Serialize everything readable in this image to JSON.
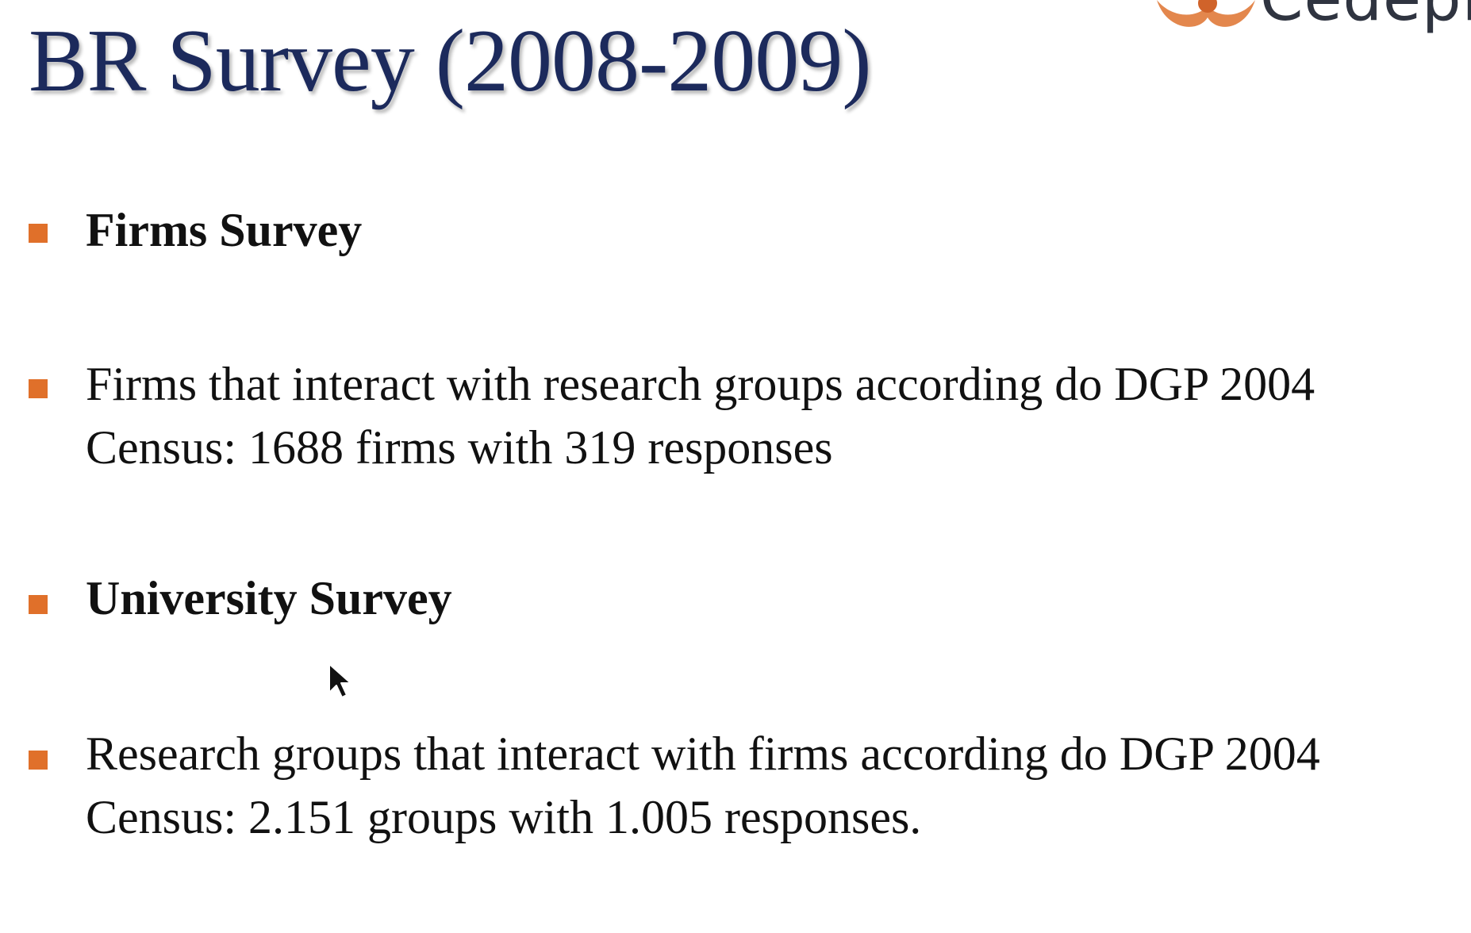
{
  "slide": {
    "title": "BR Survey (2008-2009)",
    "logo_text": "Cedepla",
    "accent_color": "#e0702a",
    "title_color": "#1c2a5c",
    "bullets": [
      {
        "text": "Firms Survey",
        "bold": true
      },
      {
        "text": "Firms that interact with research groups according do DGP 2004 Census: 1688 firms with 319 responses",
        "bold": false
      },
      {
        "text": "University Survey",
        "bold": true
      },
      {
        "text": "Research groups that interact with firms according do DGP 2004 Census: 2.151 groups with 1.005 responses.",
        "bold": false
      }
    ]
  },
  "icons": {
    "logo": "cedeplar-logo-icon",
    "cursor": "mouse-pointer-icon",
    "bullet": "square-bullet-icon"
  }
}
